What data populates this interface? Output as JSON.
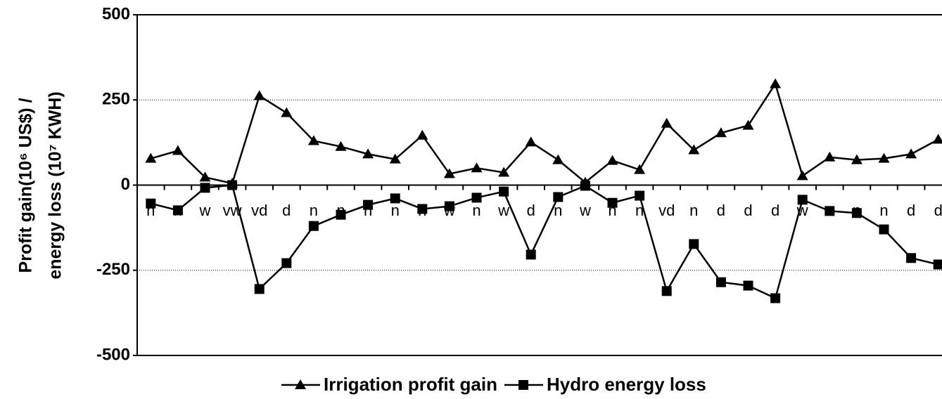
{
  "chart_data": {
    "type": "line",
    "ylabel": [
      "Profit gain(10⁶ US$) /",
      "energy loss (10⁷ KWH)"
    ],
    "categories": [
      "n",
      "n",
      "w",
      "vw",
      "vd",
      "d",
      "n",
      "n",
      "n",
      "n",
      "n",
      "w",
      "n",
      "w",
      "d",
      "n",
      "w",
      "n",
      "n",
      "vd",
      "n",
      "d",
      "d",
      "d",
      "w",
      "n",
      "n",
      "n",
      "d",
      "d"
    ],
    "series": [
      {
        "name": "Irrigation profit gain",
        "color": "#000000",
        "marker": "triangle",
        "values": [
          78,
          101,
          23,
          5,
          262,
          212,
          130,
          113,
          91,
          76,
          146,
          33,
          50,
          37,
          126,
          74,
          8,
          72,
          45,
          181,
          103,
          153,
          175,
          297,
          27,
          82,
          74,
          78,
          91,
          134
        ]
      },
      {
        "name": "Hydro energy loss",
        "color": "#000000",
        "marker": "square",
        "values": [
          -54,
          -74,
          -8,
          0,
          -305,
          -229,
          -120,
          -87,
          -58,
          -39,
          -70,
          -62,
          -37,
          -19,
          -204,
          -35,
          -2,
          -52,
          -31,
          -311,
          -173,
          -285,
          -295,
          -332,
          -43,
          -76,
          -82,
          -130,
          -214,
          -233
        ]
      }
    ],
    "ylim": [
      -500,
      500
    ],
    "yticks": [
      500,
      250,
      0,
      -250,
      -500
    ],
    "grid": true,
    "legend": "bottom"
  }
}
